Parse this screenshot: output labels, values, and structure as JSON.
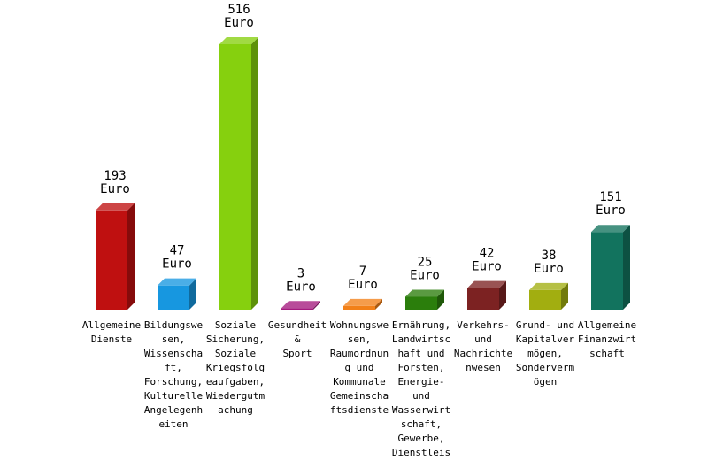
{
  "chart_data": {
    "type": "bar",
    "unit": "Euro",
    "categories": [
      "Allgemeine Dienste",
      "Bildungswesen, Wissenschaft, Forschung, Kulturelle Angelegenheiten",
      "Soziale Sicherung, Soziale Kriegsfolgeaufgaben, Wiedergutmachung",
      "Gesundheit & Sport",
      "Wohnungswesen, Raumordnung und Kommunale Gemeinschaftsdienste",
      "Ernährung, Landwirtschaft und Forsten, Energie- und Wasserwirtschaft, Gewerbe, Dienstleis",
      "Verkehrs- und Nachrichtenwesen",
      "Grund- und Kapitalvermögen, Sondervermögen",
      "Allgemeine Finanzwirtschaft"
    ],
    "category_lines": [
      [
        "Allgemeine",
        "Dienste"
      ],
      [
        "Bildungswe",
        "sen,",
        "Wissenscha",
        "ft,",
        "Forschung,",
        "Kulturelle",
        "Angelegenh",
        "eiten"
      ],
      [
        "Soziale",
        "Sicherung,",
        "Soziale",
        "Kriegsfolg",
        "eaufgaben,",
        "Wiedergutm",
        "achung"
      ],
      [
        "Gesundheit",
        "&",
        "Sport"
      ],
      [
        "Wohnungswe",
        "sen,",
        "Raumordnun",
        "g und",
        "Kommunale",
        "Gemeinscha",
        "ftsdienste"
      ],
      [
        "Ernährung,",
        "Landwirtsc",
        "haft und",
        "Forsten,",
        "Energie-",
        "und",
        "Wasserwirt",
        "schaft,",
        "Gewerbe,",
        "Dienstleis"
      ],
      [
        "Verkehrs-",
        "und",
        "Nachrichte",
        "nwesen"
      ],
      [
        "Grund- und",
        "Kapitalver",
        "mögen,",
        "Sonderverm",
        "ögen"
      ],
      [
        "Allgemeine",
        "Finanzwirt",
        "schaft"
      ]
    ],
    "values": [
      193,
      47,
      516,
      3,
      7,
      25,
      42,
      38,
      151
    ],
    "colors": [
      "#bf1010",
      "#1797e0",
      "#86d00e",
      "#a41a7e",
      "#f28018",
      "#2b7e0c",
      "#7c2222",
      "#a2ae10",
      "#12735e"
    ],
    "ylim": [
      0,
      516
    ],
    "grid": false,
    "legend": "none"
  }
}
